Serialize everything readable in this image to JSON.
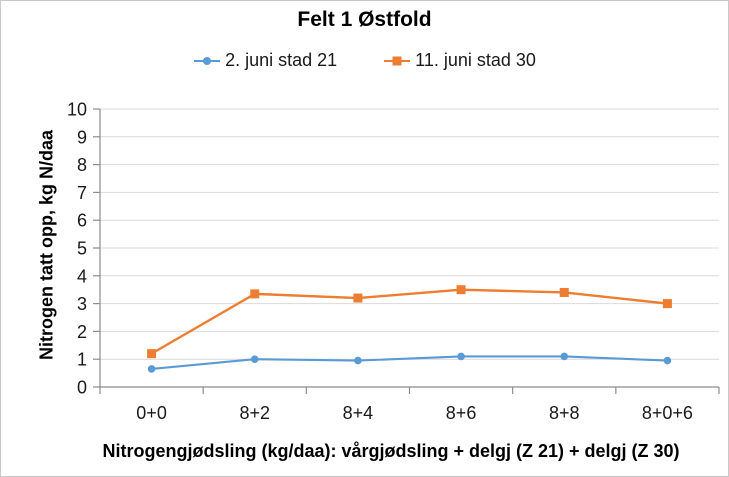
{
  "chart_data": {
    "type": "line",
    "title": "Felt 1 Østfold",
    "ylabel": "Nitrogen tatt opp, kg N/daa",
    "xlabel": "Nitrogengjødsling (kg/daa): vårgjødsling + delgj (Z 21) + delgj (Z 30)",
    "categories": [
      "0+0",
      "8+2",
      "8+4",
      "8+6",
      "8+8",
      "8+0+6"
    ],
    "series": [
      {
        "name": "2. juni stad 21",
        "color": "#5B9BD5",
        "marker": "circle",
        "values": [
          0.65,
          1.0,
          0.95,
          1.1,
          1.1,
          0.95
        ]
      },
      {
        "name": "11. juni stad 30",
        "color": "#ED7D31",
        "marker": "square",
        "values": [
          1.2,
          3.35,
          3.2,
          3.5,
          3.4,
          3.0
        ]
      }
    ],
    "ylim": [
      0,
      10
    ],
    "yticks": [
      0,
      1,
      2,
      3,
      4,
      5,
      6,
      7,
      8,
      9,
      10
    ],
    "grid": true,
    "legend_position": "top",
    "colors": {
      "grid": "#D9D9D9",
      "axis": "#8C8C8C",
      "text": "#1A1A1A",
      "title": "#000000"
    }
  }
}
